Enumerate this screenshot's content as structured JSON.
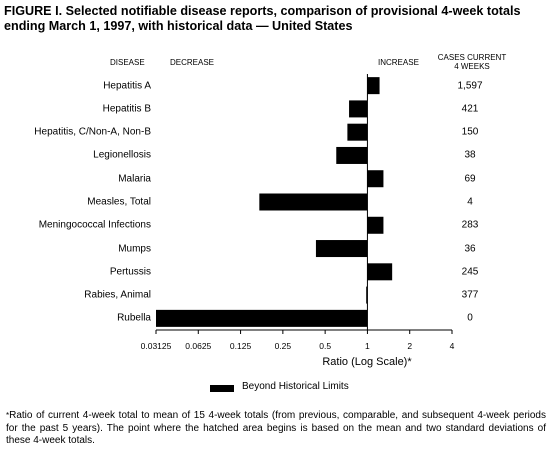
{
  "title": "FIGURE I. Selected notifiable disease reports, comparison of provisional 4-week totals ending March 1, 1997, with historical data — United States",
  "headers": {
    "disease": "DISEASE",
    "decrease": "DECREASE",
    "increase": "INCREASE",
    "cases_line1": "CASES CURRENT",
    "cases_line2": "4 WEEKS"
  },
  "chart_data": {
    "type": "bar",
    "orientation": "horizontal",
    "x_scale": "log2",
    "xlabel": "Ratio (Log Scale)*",
    "xlim": [
      0.03125,
      4
    ],
    "xticks": [
      0.03125,
      0.0625,
      0.125,
      0.25,
      0.5,
      1,
      2,
      4
    ],
    "xtick_labels": [
      "0.03125",
      "0.0625",
      "0.125",
      "0.25",
      "0.5",
      "1",
      "2",
      "4"
    ],
    "baseline": 1,
    "categories": [
      "Hepatitis A",
      "Hepatitis B",
      "Hepatitis, C/Non-A, Non-B",
      "Legionellosis",
      "Malaria",
      "Measles, Total",
      "Meningococcal Infections",
      "Mumps",
      "Pertussis",
      "Rabies, Animal",
      "Rubella"
    ],
    "values": [
      1.22,
      0.74,
      0.72,
      0.6,
      1.3,
      0.17,
      1.3,
      0.43,
      1.5,
      0.98,
      0.03125
    ],
    "cases_current_4_weeks": [
      "1,597",
      "421",
      "150",
      "38",
      "69",
      "4",
      "283",
      "36",
      "245",
      "377",
      "0"
    ],
    "bar_color": "#000000"
  },
  "legend": {
    "label": "Beyond Historical Limits"
  },
  "footnote": {
    "mark": "*",
    "text": "Ratio of current 4-week total to mean of 15 4-week totals (from previous, comparable, and subsequent 4-week periods for the past 5 years). The point where the hatched area begins is based on the mean and two standard deviations of these 4-week totals."
  }
}
